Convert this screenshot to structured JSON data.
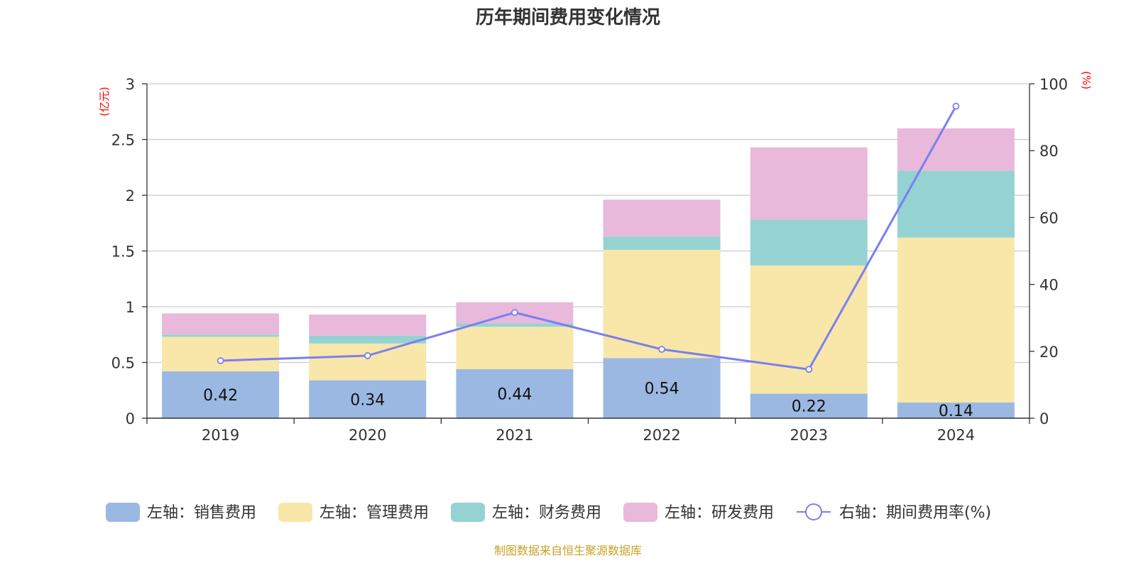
{
  "chart_data": {
    "type": "bar",
    "title": "历年期间费用变化情况",
    "categories": [
      "2019",
      "2020",
      "2021",
      "2022",
      "2023",
      "2024"
    ],
    "y_left": {
      "unit": "(亿元)",
      "min": 0,
      "max": 3,
      "ticks": [
        "0",
        "0.5",
        "1",
        "1.5",
        "2",
        "2.5",
        "3"
      ],
      "unit_color": "#ff0000"
    },
    "y_right": {
      "unit": "(%)",
      "min": 0,
      "max": 100,
      "ticks": [
        "0",
        "20",
        "40",
        "60",
        "80",
        "100"
      ],
      "unit_color": "#ff0000"
    },
    "series": [
      {
        "name": "左轴：销售费用",
        "type": "bar",
        "stack": true,
        "color": "#9bb8e2",
        "values": [
          0.42,
          0.34,
          0.44,
          0.54,
          0.22,
          0.14
        ],
        "labels": [
          "0.42",
          "0.34",
          "0.44",
          "0.54",
          "0.22",
          "0.14"
        ]
      },
      {
        "name": "左轴：管理费用",
        "type": "bar",
        "stack": true,
        "color": "#f8e7a8",
        "values": [
          0.31,
          0.33,
          0.38,
          0.97,
          1.15,
          1.48
        ]
      },
      {
        "name": "左轴：财务费用",
        "type": "bar",
        "stack": true,
        "color": "#95d3d3",
        "values": [
          0.02,
          0.07,
          0.03,
          0.12,
          0.41,
          0.6
        ]
      },
      {
        "name": "左轴：研发费用",
        "type": "bar",
        "stack": true,
        "color": "#e8b9da",
        "values": [
          0.19,
          0.19,
          0.19,
          0.33,
          0.65,
          0.38
        ]
      },
      {
        "name": "右轴：期间费用率(%)",
        "type": "line",
        "axis": "right",
        "color": "#7b7ff0",
        "values": [
          17.2,
          18.7,
          31.6,
          20.6,
          14.6,
          93.3
        ]
      }
    ],
    "legend_position": "bottom",
    "grid": true
  },
  "footer": {
    "source": "制图数据来自恒生聚源数据库",
    "source_color": "#c9a227"
  }
}
